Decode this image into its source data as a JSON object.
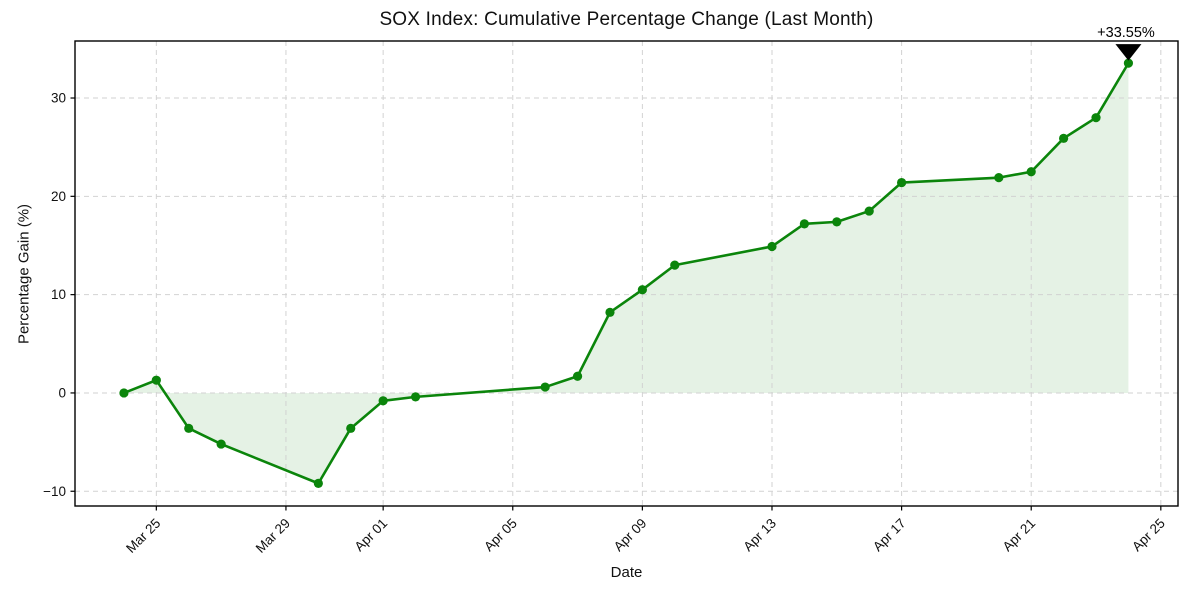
{
  "chart_data": {
    "type": "line",
    "title": "SOX Index: Cumulative Percentage Change (Last Month)",
    "xlabel": "Date",
    "ylabel": "Percentage Gain (%)",
    "series_name": "SOX cumulative percentage change",
    "baseline": 0,
    "grid": {
      "show": true,
      "style": "dashed",
      "color": "#d2d2d2"
    },
    "legend": "none",
    "xlim_days": [
      -1.51,
      32.53
    ],
    "ylim": [
      -11.5,
      35.8
    ],
    "colors": {
      "line": "#0b850b",
      "fill": "rgba(0,128,0,0.10)",
      "marker": "#0b850b",
      "annotation": "#000000",
      "text": "#111111",
      "spine": "#000000"
    },
    "points": [
      {
        "date": "Mar 24",
        "day": 0,
        "value": 0.0
      },
      {
        "date": "Mar 25",
        "day": 1,
        "value": 1.3
      },
      {
        "date": "Mar 26",
        "day": 2,
        "value": -3.6
      },
      {
        "date": "Mar 27",
        "day": 3,
        "value": -5.2
      },
      {
        "date": "Mar 30",
        "day": 6,
        "value": -9.2
      },
      {
        "date": "Mar 31",
        "day": 7,
        "value": -3.6
      },
      {
        "date": "Apr 01",
        "day": 8,
        "value": -0.8
      },
      {
        "date": "Apr 02",
        "day": 9,
        "value": -0.4
      },
      {
        "date": "Apr 06",
        "day": 13,
        "value": 0.6
      },
      {
        "date": "Apr 07",
        "day": 14,
        "value": 1.7
      },
      {
        "date": "Apr 08",
        "day": 15,
        "value": 8.2
      },
      {
        "date": "Apr 09",
        "day": 16,
        "value": 10.5
      },
      {
        "date": "Apr 10",
        "day": 17,
        "value": 13.0
      },
      {
        "date": "Apr 13",
        "day": 20,
        "value": 14.9
      },
      {
        "date": "Apr 14",
        "day": 21,
        "value": 17.2
      },
      {
        "date": "Apr 15",
        "day": 22,
        "value": 17.4
      },
      {
        "date": "Apr 16",
        "day": 23,
        "value": 18.5
      },
      {
        "date": "Apr 17",
        "day": 24,
        "value": 21.4
      },
      {
        "date": "Apr 20",
        "day": 27,
        "value": 21.9
      },
      {
        "date": "Apr 21",
        "day": 28,
        "value": 22.5
      },
      {
        "date": "Apr 22",
        "day": 29,
        "value": 25.9
      },
      {
        "date": "Apr 23",
        "day": 30,
        "value": 28.0
      },
      {
        "date": "Apr 24",
        "day": 31,
        "value": 33.55
      }
    ],
    "x_ticks": [
      {
        "label": "Mar 25",
        "day": 1
      },
      {
        "label": "Mar 29",
        "day": 5
      },
      {
        "label": "Apr 01",
        "day": 8
      },
      {
        "label": "Apr 05",
        "day": 12
      },
      {
        "label": "Apr 09",
        "day": 16
      },
      {
        "label": "Apr 13",
        "day": 20
      },
      {
        "label": "Apr 17",
        "day": 24
      },
      {
        "label": "Apr 21",
        "day": 28
      },
      {
        "label": "Apr 25",
        "day": 32
      }
    ],
    "y_ticks": [
      {
        "label": "−10",
        "value": -10
      },
      {
        "label": "0",
        "value": 0
      },
      {
        "label": "10",
        "value": 10
      },
      {
        "label": "20",
        "value": 20
      },
      {
        "label": "30",
        "value": 30
      }
    ],
    "annotation": {
      "text": "+33.55%",
      "date": "Apr 24",
      "day": 31,
      "value": 33.55,
      "marker": "triangle-down"
    }
  }
}
